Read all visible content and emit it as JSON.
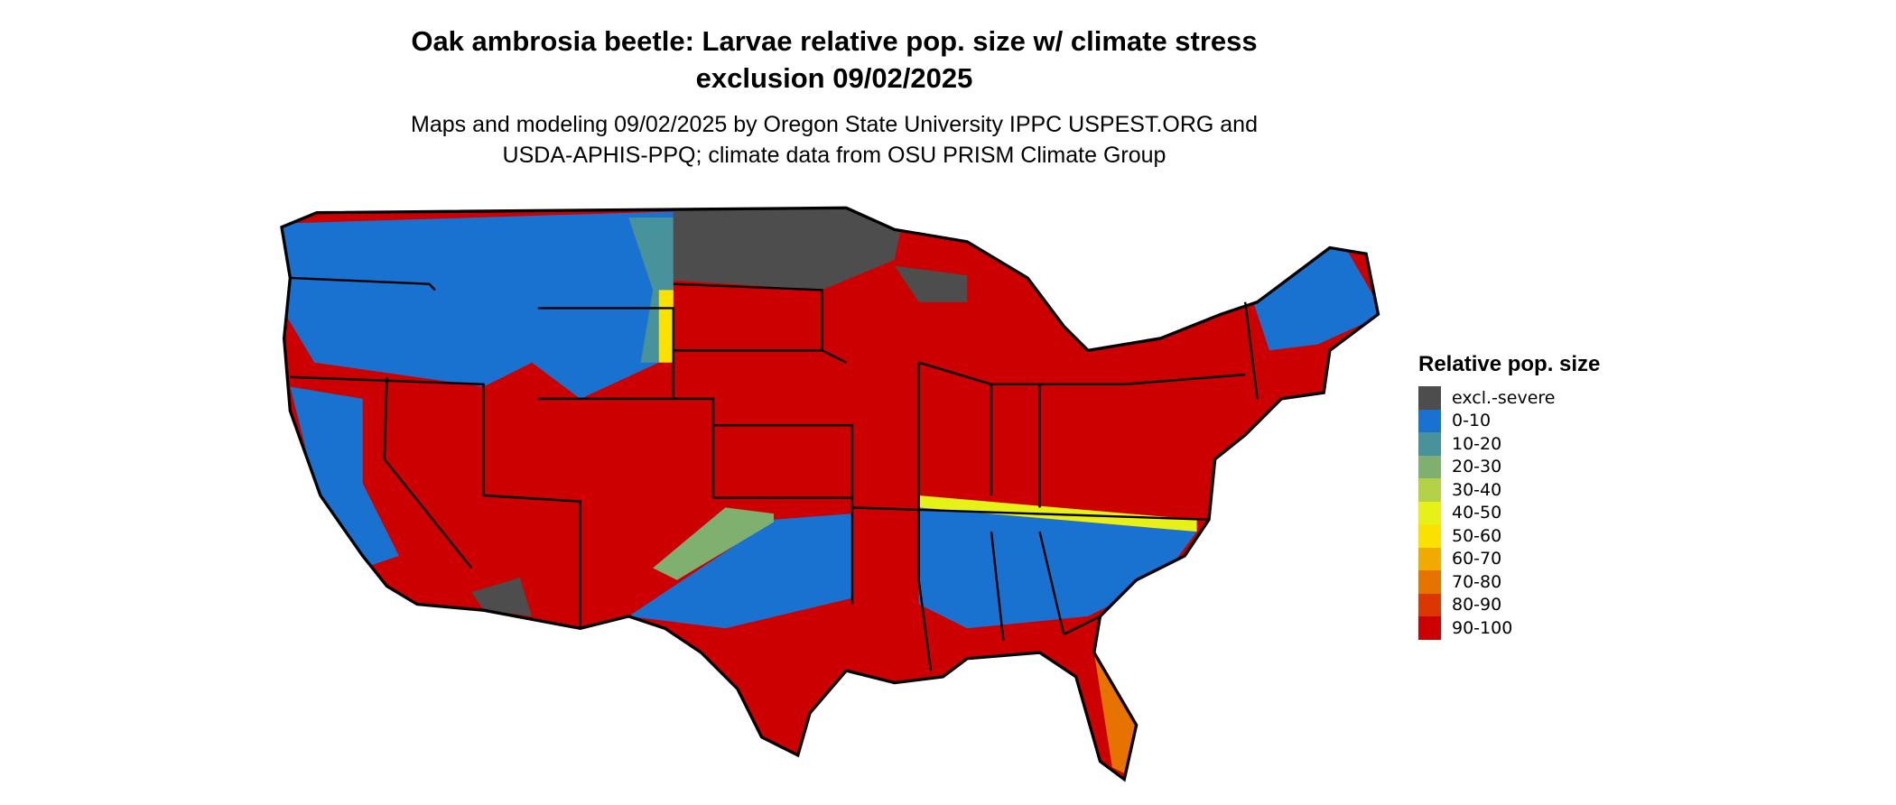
{
  "title": {
    "line1": "Oak ambrosia beetle: Larvae relative pop. size w/ climate stress",
    "line2": "exclusion 09/02/2025"
  },
  "subtitle": {
    "line1": "Maps and modeling 09/02/2025 by Oregon State University IPPC USPEST.ORG and",
    "line2": "USDA-APHIS-PPQ; climate data from OSU PRISM Climate Group"
  },
  "legend": {
    "title": "Relative pop. size",
    "items": [
      {
        "label": "excl.-severe",
        "color": "#4d4d4d"
      },
      {
        "label": "0-10",
        "color": "#1a72d0"
      },
      {
        "label": "10-20",
        "color": "#48929b"
      },
      {
        "label": "20-30",
        "color": "#7fb070"
      },
      {
        "label": "30-40",
        "color": "#b3d248"
      },
      {
        "label": "40-50",
        "color": "#e6f118"
      },
      {
        "label": "50-60",
        "color": "#fae100"
      },
      {
        "label": "60-70",
        "color": "#f0aa00"
      },
      {
        "label": "70-80",
        "color": "#e67300"
      },
      {
        "label": "80-90",
        "color": "#dc3700"
      },
      {
        "label": "90-100",
        "color": "#cc0000"
      }
    ]
  }
}
